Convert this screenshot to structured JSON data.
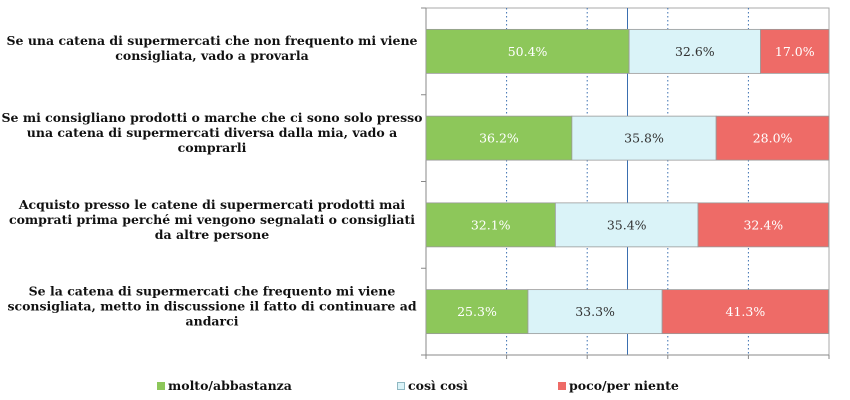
{
  "chart_data": {
    "type": "bar",
    "orientation": "horizontal",
    "stacked": true,
    "xlim": [
      0,
      100
    ],
    "categories": [
      [
        "Se una catena di supermercati che non frequento mi viene",
        "consigliata, vado a provarla"
      ],
      [
        "Se mi consigliano prodotti o marche che ci sono solo presso",
        "una catena di supermercati diversa dalla mia, vado a",
        "comprarli"
      ],
      [
        "Acquisto presso le catene di supermercati prodotti mai",
        "comprati prima perché mi vengono segnalati o consigliati",
        "da altre persone"
      ],
      [
        "Se la catena di supermercati che frequento mi viene",
        "sconsigliata, metto in discussione il fatto di continuare ad",
        "andarci"
      ]
    ],
    "series": [
      {
        "name": "molto/abbastanza",
        "color": "#8DC75A",
        "values": [
          50.4,
          36.2,
          32.1,
          25.3
        ],
        "labels": [
          "50.4%",
          "36.2%",
          "32.1%",
          "25.3%"
        ]
      },
      {
        "name": "così così",
        "color": "#DAF3F8",
        "values": [
          32.6,
          35.8,
          35.4,
          33.3
        ],
        "labels": [
          "32.6%",
          "35.8%",
          "35.4%",
          "33.3%"
        ]
      },
      {
        "name": "poco/per niente",
        "color": "#EE6B67",
        "values": [
          17.0,
          28.0,
          32.4,
          41.3
        ],
        "labels": [
          "17.0%",
          "28.0%",
          "32.4%",
          "41.3%"
        ]
      }
    ],
    "grid": true,
    "legend_position": "bottom"
  }
}
